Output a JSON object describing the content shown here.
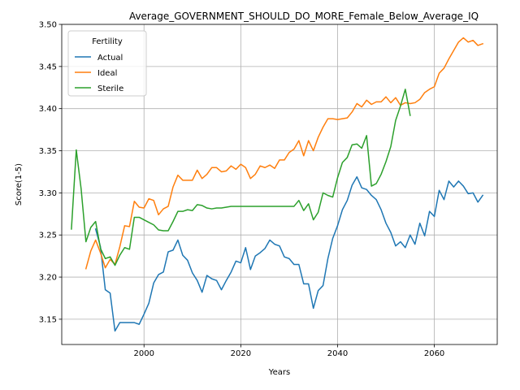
{
  "chart_data": {
    "type": "line",
    "title": "Average_GOVERNMENT_SHOULD_DO_MORE_Female_Below_Average_IQ",
    "xlabel": "Years",
    "ylabel": "Score(1-5)",
    "xlim": [
      1983,
      2073
    ],
    "ylim": [
      3.12,
      3.5
    ],
    "xticks": [
      2000,
      2020,
      2040,
      2060
    ],
    "yticks": [
      3.15,
      3.2,
      3.25,
      3.3,
      3.35,
      3.4,
      3.45,
      3.5
    ],
    "ytick_labels": [
      "3.15",
      "3.20",
      "3.25",
      "3.30",
      "3.35",
      "3.40",
      "3.45",
      "3.50"
    ],
    "grid": true,
    "legend": {
      "title": "Fertility",
      "position": "top-left"
    },
    "series": [
      {
        "name": "Actual",
        "color": "#1f77b4",
        "x": [
          1990,
          1991,
          1992,
          1993,
          1994,
          1995,
          1996,
          1997,
          1998,
          1999,
          2000,
          2001,
          2002,
          2003,
          2004,
          2005,
          2006,
          2007,
          2008,
          2009,
          2010,
          2011,
          2012,
          2013,
          2014,
          2015,
          2016,
          2017,
          2018,
          2019,
          2020,
          2021,
          2022,
          2023,
          2024,
          2025,
          2026,
          2027,
          2028,
          2029,
          2030,
          2031,
          2032,
          2033,
          2034,
          2035,
          2036,
          2037,
          2038,
          2039,
          2040,
          2041,
          2042,
          2043,
          2044,
          2045,
          2046,
          2047,
          2048,
          2049,
          2050,
          2051,
          2052,
          2053,
          2054,
          2055,
          2056,
          2057,
          2058,
          2059,
          2060,
          2061,
          2062,
          2063,
          2064,
          2065,
          2066,
          2067,
          2068,
          2069,
          2070
        ],
        "values": [
          3.257,
          3.236,
          3.185,
          3.181,
          3.136,
          3.146,
          3.146,
          3.146,
          3.146,
          3.144,
          3.156,
          3.169,
          3.193,
          3.203,
          3.206,
          3.23,
          3.232,
          3.244,
          3.226,
          3.22,
          3.205,
          3.196,
          3.182,
          3.202,
          3.198,
          3.196,
          3.185,
          3.196,
          3.206,
          3.219,
          3.217,
          3.235,
          3.209,
          3.225,
          3.229,
          3.234,
          3.244,
          3.239,
          3.237,
          3.224,
          3.222,
          3.215,
          3.215,
          3.192,
          3.192,
          3.163,
          3.184,
          3.19,
          3.222,
          3.246,
          3.261,
          3.28,
          3.291,
          3.309,
          3.319,
          3.306,
          3.304,
          3.297,
          3.292,
          3.28,
          3.264,
          3.253,
          3.237,
          3.242,
          3.235,
          3.25,
          3.239,
          3.264,
          3.249,
          3.278,
          3.272,
          3.303,
          3.292,
          3.314,
          3.307,
          3.314,
          3.308,
          3.299,
          3.3,
          3.289,
          3.297
        ]
      },
      {
        "name": "Ideal",
        "color": "#ff7f0e",
        "x": [
          1988,
          1989,
          1990,
          1991,
          1992,
          1993,
          1994,
          1995,
          1996,
          1997,
          1998,
          1999,
          2000,
          2001,
          2002,
          2003,
          2004,
          2005,
          2006,
          2007,
          2008,
          2009,
          2010,
          2011,
          2012,
          2013,
          2014,
          2015,
          2016,
          2017,
          2018,
          2019,
          2020,
          2021,
          2022,
          2023,
          2024,
          2025,
          2026,
          2027,
          2028,
          2029,
          2030,
          2031,
          2032,
          2033,
          2034,
          2035,
          2036,
          2037,
          2038,
          2039,
          2040,
          2041,
          2042,
          2043,
          2044,
          2045,
          2046,
          2047,
          2048,
          2049,
          2050,
          2051,
          2052,
          2053,
          2054,
          2055,
          2056,
          2057,
          2058,
          2059,
          2060,
          2061,
          2062,
          2063,
          2064,
          2065,
          2066,
          2067,
          2068,
          2069,
          2070
        ],
        "values": [
          3.21,
          3.231,
          3.244,
          3.229,
          3.211,
          3.221,
          3.215,
          3.236,
          3.261,
          3.26,
          3.29,
          3.283,
          3.282,
          3.293,
          3.291,
          3.274,
          3.281,
          3.284,
          3.307,
          3.321,
          3.315,
          3.315,
          3.315,
          3.327,
          3.317,
          3.322,
          3.33,
          3.33,
          3.325,
          3.326,
          3.332,
          3.328,
          3.334,
          3.33,
          3.317,
          3.322,
          3.332,
          3.33,
          3.333,
          3.329,
          3.339,
          3.339,
          3.348,
          3.352,
          3.362,
          3.344,
          3.362,
          3.35,
          3.366,
          3.378,
          3.388,
          3.388,
          3.387,
          3.388,
          3.389,
          3.396,
          3.406,
          3.402,
          3.41,
          3.405,
          3.408,
          3.408,
          3.414,
          3.407,
          3.413,
          3.404,
          3.407,
          3.406,
          3.407,
          3.411,
          3.419,
          3.423,
          3.426,
          3.442,
          3.448,
          3.459,
          3.469,
          3.479,
          3.484,
          3.479,
          3.481,
          3.475,
          3.477
        ]
      },
      {
        "name": "Sterile",
        "color": "#2ca02c",
        "x": [
          1985,
          1986,
          1987,
          1988,
          1989,
          1990,
          1991,
          1992,
          1993,
          1994,
          1995,
          1996,
          1997,
          1998,
          1999,
          2000,
          2001,
          2002,
          2003,
          2004,
          2005,
          2006,
          2007,
          2008,
          2009,
          2010,
          2011,
          2012,
          2013,
          2014,
          2015,
          2016,
          2017,
          2018,
          2019,
          2020,
          2021,
          2022,
          2023,
          2024,
          2025,
          2026,
          2027,
          2028,
          2029,
          2030,
          2031,
          2032,
          2033,
          2034,
          2035,
          2036,
          2037,
          2038,
          2039,
          2040,
          2041,
          2042,
          2043,
          2044,
          2045,
          2046,
          2047,
          2048,
          2049,
          2050,
          2051,
          2052,
          2053,
          2054,
          2055
        ],
        "values": [
          3.257,
          3.351,
          3.305,
          3.242,
          3.259,
          3.266,
          3.234,
          3.222,
          3.224,
          3.214,
          3.226,
          3.235,
          3.233,
          3.271,
          3.271,
          3.268,
          3.265,
          3.262,
          3.256,
          3.255,
          3.255,
          3.266,
          3.278,
          3.278,
          3.28,
          3.279,
          3.286,
          3.285,
          3.282,
          3.281,
          3.282,
          3.282,
          3.283,
          3.284,
          3.284,
          3.284,
          3.284,
          3.284,
          3.284,
          3.284,
          3.284,
          3.284,
          3.284,
          3.284,
          3.284,
          3.284,
          3.284,
          3.291,
          3.279,
          3.287,
          3.268,
          3.277,
          3.3,
          3.297,
          3.295,
          3.318,
          3.336,
          3.342,
          3.357,
          3.358,
          3.353,
          3.368,
          3.308,
          3.311,
          3.322,
          3.337,
          3.355,
          3.386,
          3.403,
          3.423,
          3.392
        ]
      }
    ]
  }
}
